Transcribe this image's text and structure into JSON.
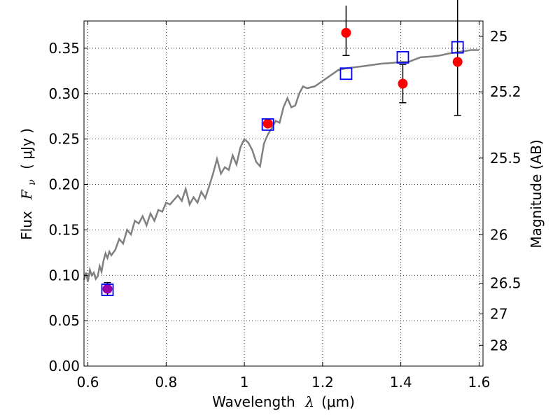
{
  "chart_data": {
    "type": "scatter",
    "title": "",
    "xlabel": {
      "prefix": "Wavelength",
      "symbol": "λ",
      "unit": "(μm)"
    },
    "ylabel": {
      "prefix": "Flux",
      "symbol": "F",
      "subscript": "ν",
      "unit": "( μJy )"
    },
    "y2label": "Magnitude (AB)",
    "xlim": [
      0.59,
      1.61
    ],
    "ylim": [
      0.0,
      0.38
    ],
    "grid": true,
    "x_ticks": [
      0.6,
      0.8,
      1.0,
      1.2,
      1.4,
      1.6
    ],
    "x_tick_labels": [
      "0.6",
      "0.8",
      "1",
      "1.2",
      "1.4",
      "1.6"
    ],
    "y_ticks": [
      0.0,
      0.05,
      0.1,
      0.15,
      0.2,
      0.25,
      0.3,
      0.35
    ],
    "y_tick_labels": [
      "0.00",
      "0.05",
      "0.10",
      "0.15",
      "0.20",
      "0.25",
      "0.30",
      "0.35"
    ],
    "mag_ticks": [
      25,
      25.2,
      25.5,
      26,
      26.5,
      27,
      28
    ],
    "mag_tick_labels": [
      "25",
      "25.2",
      "25.5",
      "26",
      "26.5",
      "27",
      "28"
    ],
    "colors": {
      "model": "#808080",
      "observed": "#ff0000",
      "model_box": "#0000ff",
      "overlap": "#9900aa",
      "errorbar": "#000000"
    },
    "series": [
      {
        "name": "model spectrum",
        "type": "line",
        "x": [
          0.59,
          0.595,
          0.6,
          0.605,
          0.61,
          0.615,
          0.62,
          0.625,
          0.63,
          0.635,
          0.64,
          0.645,
          0.65,
          0.655,
          0.66,
          0.67,
          0.68,
          0.69,
          0.7,
          0.71,
          0.72,
          0.73,
          0.74,
          0.75,
          0.76,
          0.77,
          0.78,
          0.79,
          0.8,
          0.81,
          0.82,
          0.83,
          0.84,
          0.85,
          0.86,
          0.87,
          0.88,
          0.89,
          0.9,
          0.91,
          0.92,
          0.93,
          0.94,
          0.95,
          0.96,
          0.97,
          0.98,
          0.99,
          1.0,
          1.01,
          1.02,
          1.03,
          1.04,
          1.05,
          1.06,
          1.07,
          1.08,
          1.09,
          1.1,
          1.11,
          1.12,
          1.13,
          1.14,
          1.15,
          1.16,
          1.18,
          1.2,
          1.22,
          1.24,
          1.26,
          1.3,
          1.35,
          1.38,
          1.4,
          1.42,
          1.45,
          1.48,
          1.5,
          1.52,
          1.55,
          1.58,
          1.6
        ],
        "y": [
          0.095,
          0.103,
          0.093,
          0.106,
          0.1,
          0.103,
          0.096,
          0.099,
          0.11,
          0.104,
          0.116,
          0.124,
          0.119,
          0.126,
          0.122,
          0.128,
          0.14,
          0.135,
          0.15,
          0.145,
          0.16,
          0.157,
          0.165,
          0.155,
          0.168,
          0.16,
          0.172,
          0.17,
          0.18,
          0.178,
          0.183,
          0.188,
          0.182,
          0.195,
          0.178,
          0.186,
          0.18,
          0.192,
          0.185,
          0.198,
          0.212,
          0.228,
          0.212,
          0.219,
          0.216,
          0.232,
          0.222,
          0.241,
          0.25,
          0.246,
          0.238,
          0.225,
          0.22,
          0.245,
          0.255,
          0.262,
          0.27,
          0.268,
          0.285,
          0.295,
          0.285,
          0.287,
          0.3,
          0.308,
          0.306,
          0.308,
          0.314,
          0.32,
          0.326,
          0.328,
          0.33,
          0.333,
          0.334,
          0.335,
          0.335,
          0.34,
          0.341,
          0.342,
          0.344,
          0.346,
          0.348,
          0.348
        ]
      },
      {
        "name": "observed",
        "type": "scatter",
        "x": [
          0.65,
          1.06,
          1.26,
          1.405,
          1.545
        ],
        "y": [
          0.085,
          0.267,
          0.367,
          0.311,
          0.335
        ],
        "yerr_lo": [
          0.007,
          0.0,
          0.025,
          0.021,
          0.059
        ],
        "yerr_hi": [
          0.007,
          0.0,
          0.03,
          0.021,
          0.07
        ]
      },
      {
        "name": "model photometry",
        "type": "scatter",
        "marker": "square",
        "x": [
          0.65,
          1.06,
          1.26,
          1.405,
          1.545
        ],
        "y": [
          0.084,
          0.266,
          0.322,
          0.34,
          0.351
        ]
      }
    ]
  }
}
